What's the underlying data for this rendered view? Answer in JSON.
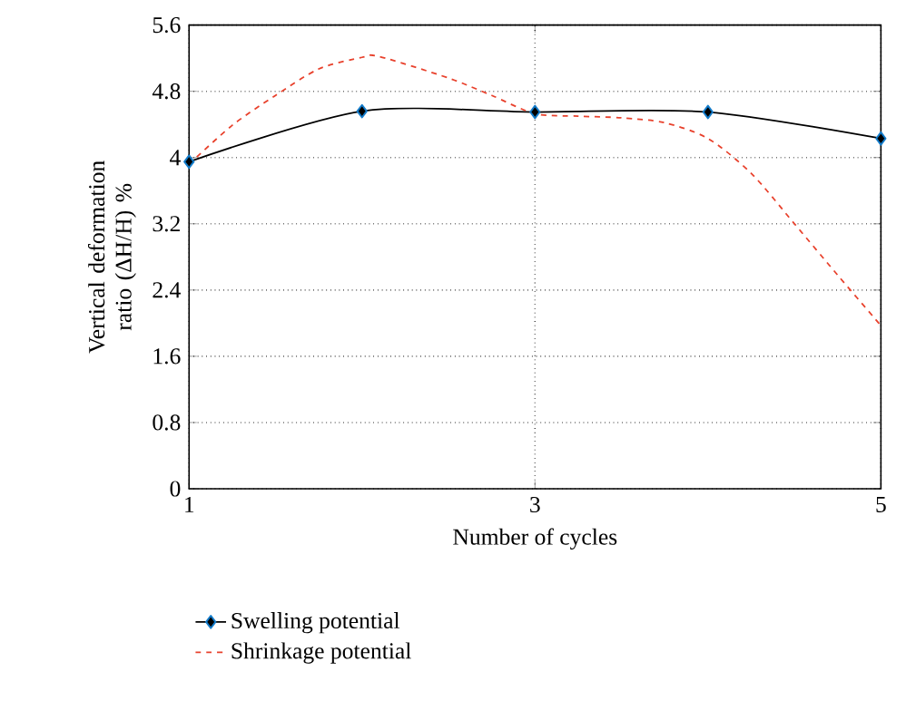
{
  "chart_data": {
    "type": "line",
    "xlabel": "Number of cycles",
    "ylabel": "Vertical deformation ratio (ΔH/H) %",
    "xlim": [
      1,
      5
    ],
    "xticks": [
      1,
      3,
      5
    ],
    "ylim": [
      0,
      5.6
    ],
    "yticks": [
      0,
      0.8,
      1.6,
      2.4,
      3.2,
      4,
      4.8,
      5.6
    ],
    "grid": true,
    "legend": "bottom",
    "series": [
      {
        "name": "Swelling potential",
        "color": "#000000",
        "x": [
          1,
          2,
          3,
          4,
          5
        ],
        "values": [
          3.95,
          4.56,
          4.55,
          4.55,
          4.23
        ],
        "marker": "diamond",
        "line_style": "solid"
      },
      {
        "name": "Shrinkage potential",
        "color": "#e8412c",
        "x": [
          1,
          1.25,
          1.5,
          1.75,
          2,
          2.1,
          2.5,
          2.75,
          3,
          3.25,
          3.5,
          3.75,
          4,
          4.25,
          4.5,
          4.75,
          5
        ],
        "values": [
          3.92,
          4.39,
          4.75,
          5.07,
          5.21,
          5.22,
          4.96,
          4.75,
          4.53,
          4.5,
          4.48,
          4.42,
          4.23,
          3.81,
          3.2,
          2.58,
          1.97
        ],
        "marker": "none",
        "line_style": "dashed"
      }
    ]
  }
}
